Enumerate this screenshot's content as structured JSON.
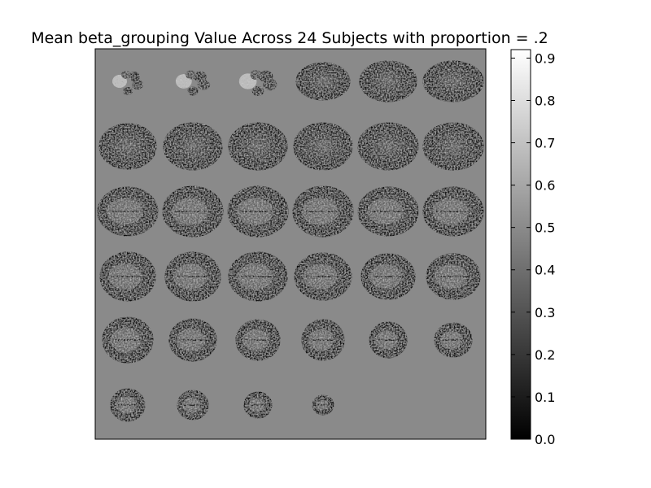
{
  "chart_data": {
    "type": "heatmap",
    "title": "Mean beta_grouping Value Across 24 Subjects with proportion = .2",
    "xlabel": "",
    "ylabel": "",
    "colormap": "gray",
    "background_value": 0.5,
    "grid": false,
    "mosaic": {
      "rows": 6,
      "cols": 6,
      "slices_shown": 34
    },
    "colorbar": {
      "min": 0.0,
      "max": 0.92,
      "ticks": [
        0.0,
        0.1,
        0.2,
        0.3,
        0.4,
        0.5,
        0.6,
        0.7,
        0.8,
        0.9
      ],
      "tick_labels": [
        "0.0",
        "0.1",
        "0.2",
        "0.3",
        "0.4",
        "0.5",
        "0.6",
        "0.7",
        "0.8",
        "0.9"
      ]
    }
  },
  "colors": {
    "panel_background": "#8a8a8a",
    "axis": "#000000",
    "figure_background": "#ffffff"
  }
}
